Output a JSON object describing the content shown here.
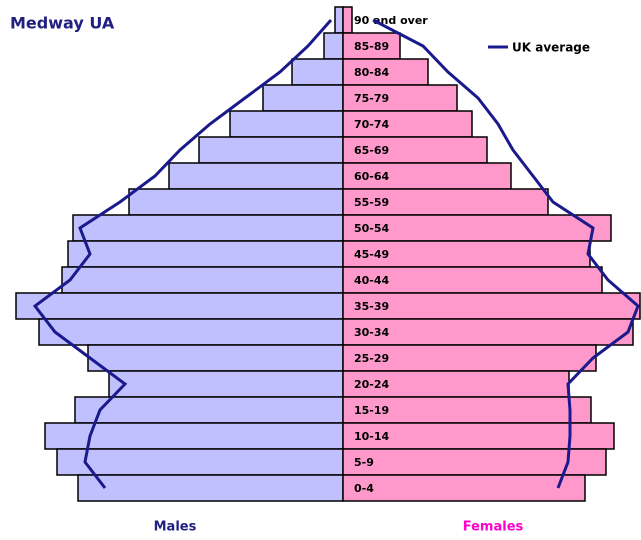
{
  "chart_data": {
    "type": "pyramid",
    "title": "Medway UA",
    "categories": [
      "90 and over",
      "85-89",
      "80-84",
      "75-79",
      "70-74",
      "65-69",
      "60-64",
      "55-59",
      "50-54",
      "45-49",
      "40-44",
      "35-39",
      "30-34",
      "25-29",
      "20-24",
      "15-19",
      "10-14",
      "5-9",
      "0-4"
    ],
    "xlim": [
      0,
      330
    ],
    "series": [
      {
        "name": "Males",
        "color": "#c0c0ff",
        "label_color": "#202080",
        "values": [
          8,
          19,
          51,
          80,
          113,
          144,
          174,
          214,
          270,
          275,
          281,
          327,
          304,
          255,
          234,
          268,
          298,
          286,
          265
        ]
      },
      {
        "name": "Females",
        "color": "#ff99cc",
        "label_color": "#ff00cc",
        "values": [
          9,
          57,
          85,
          114,
          129,
          144,
          168,
          205,
          268,
          247,
          259,
          297,
          290,
          253,
          226,
          248,
          271,
          263,
          242
        ]
      }
    ],
    "uk_average": {
      "name": "UK average",
      "color": "#1a1a8c",
      "males": [
        12,
        35,
        63,
        98,
        133,
        163,
        188,
        223,
        263,
        253,
        273,
        308,
        288,
        253,
        218,
        243,
        253,
        258,
        238
      ],
      "females": [
        30,
        80,
        105,
        135,
        155,
        170,
        190,
        210,
        250,
        245,
        265,
        295,
        285,
        250,
        225,
        227,
        227,
        225,
        215
      ]
    }
  }
}
